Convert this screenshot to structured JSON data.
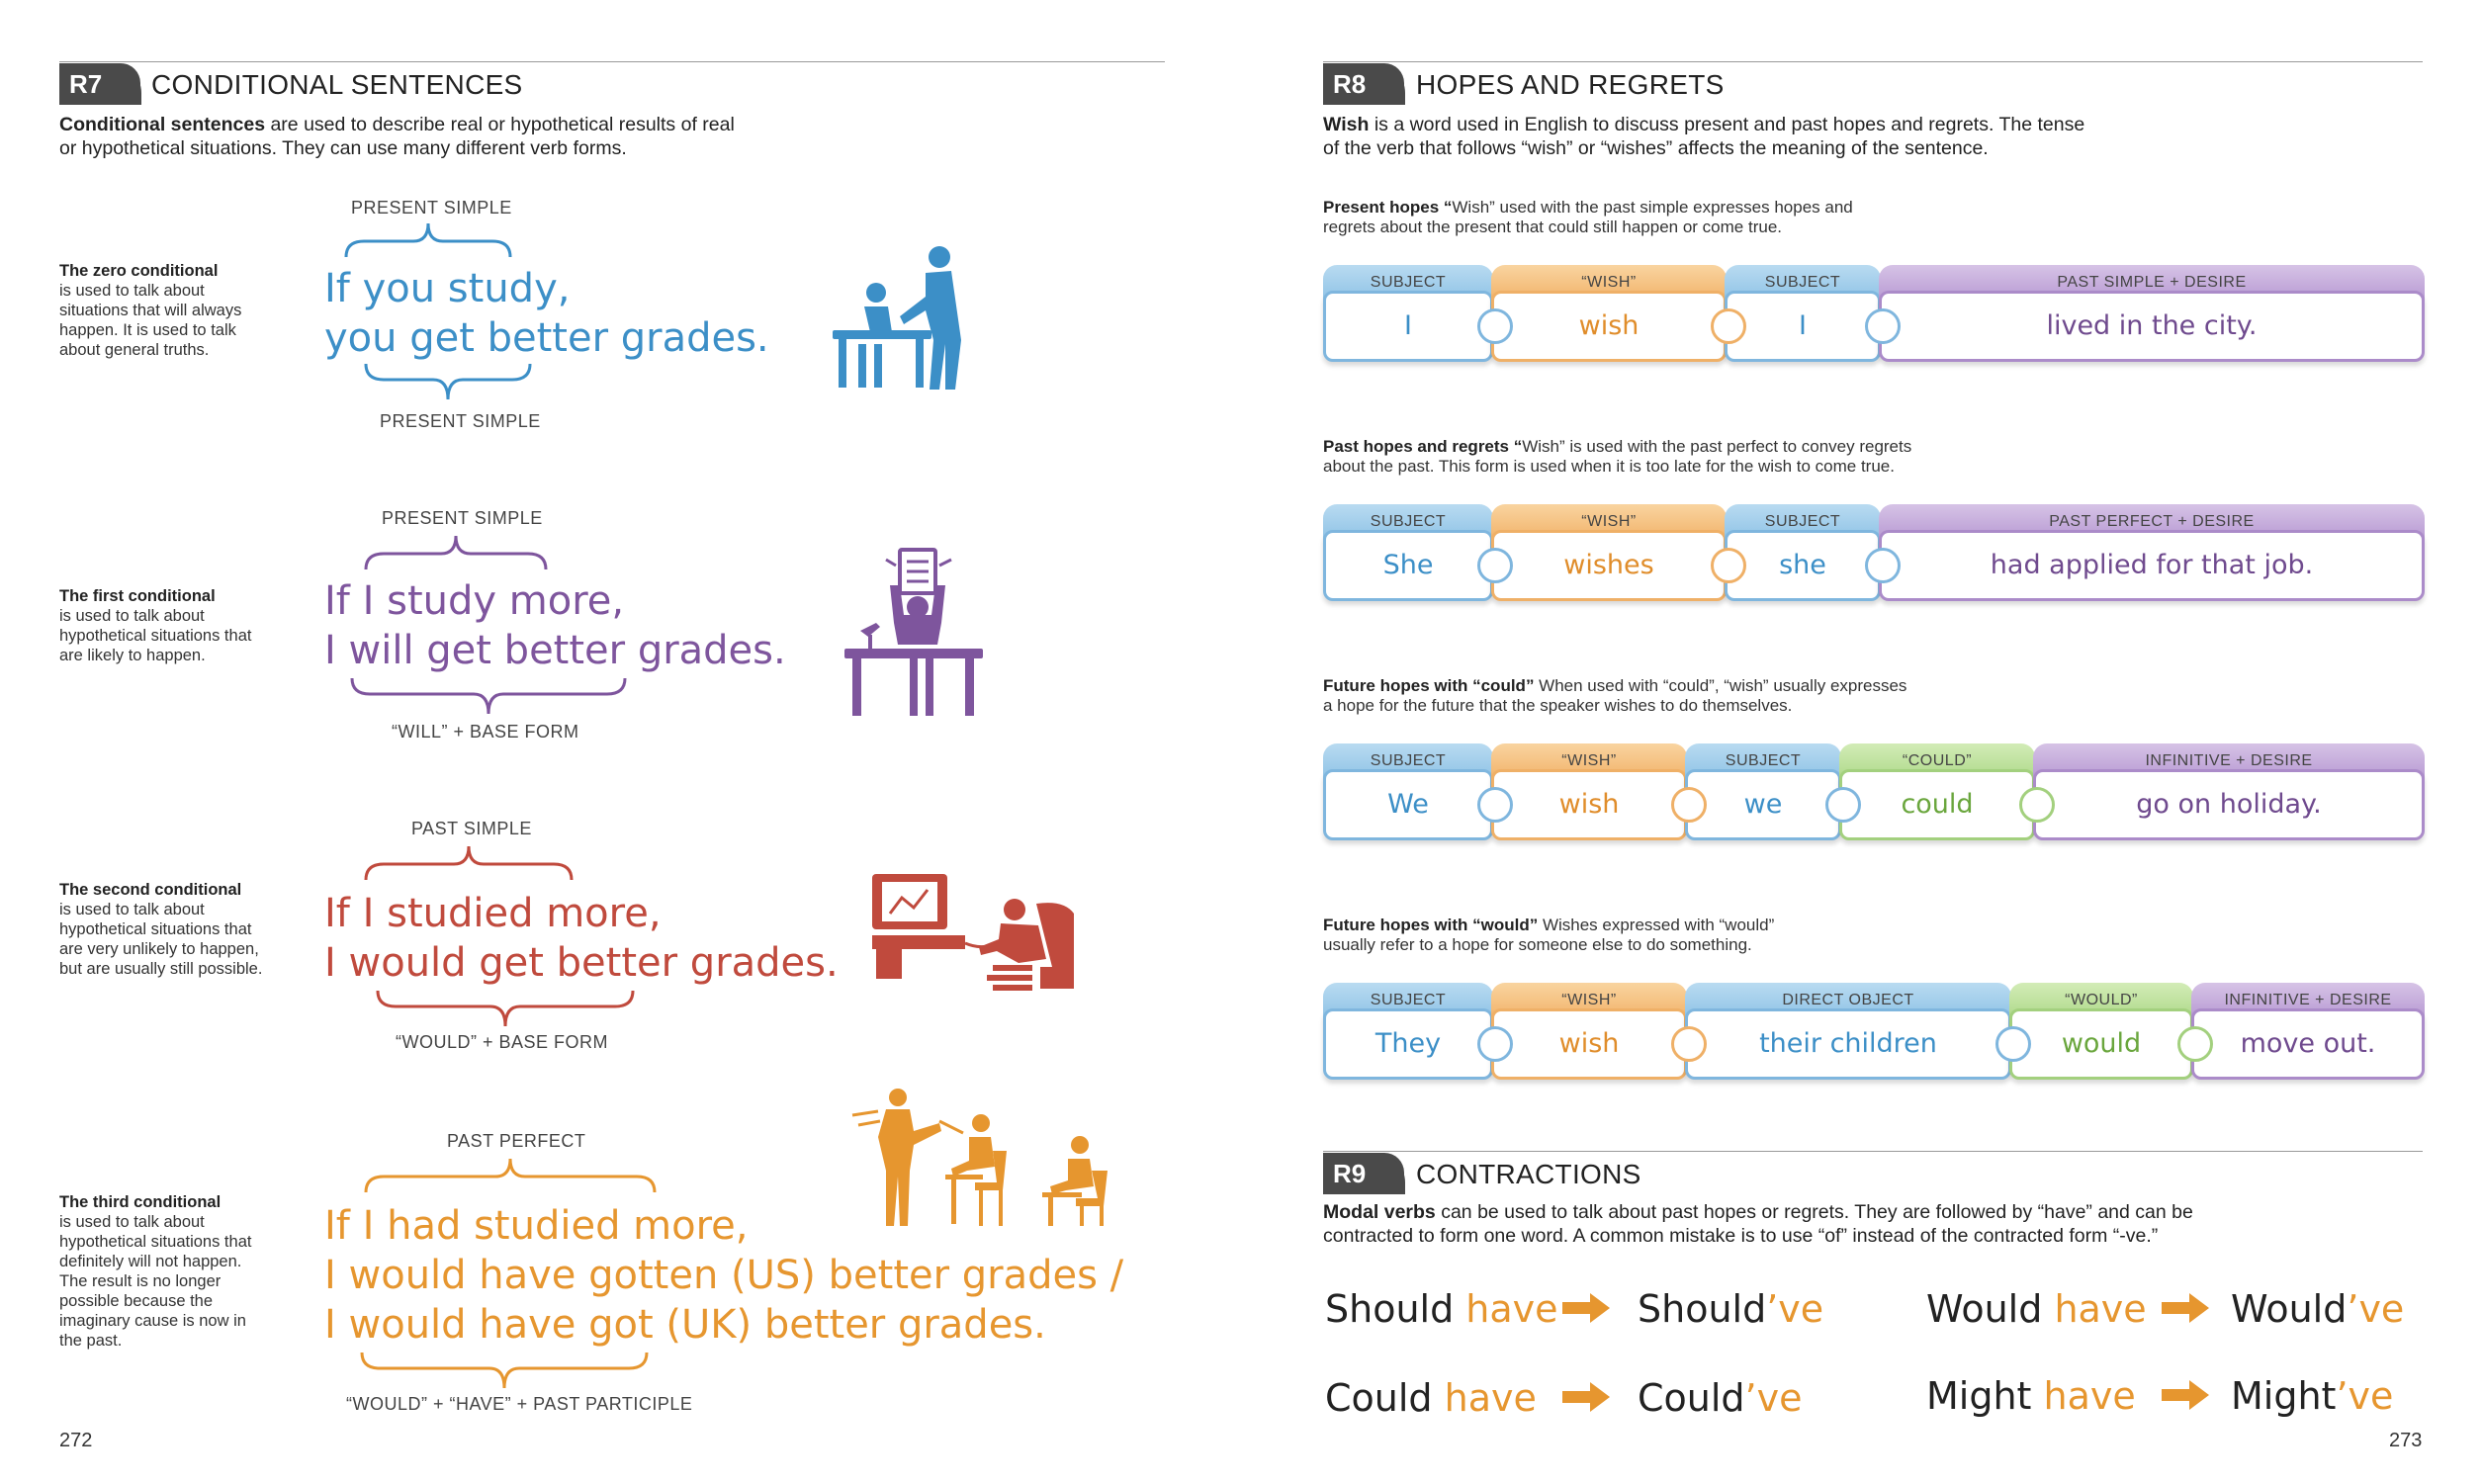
{
  "left": {
    "section_code": "R7",
    "section_title": "CONDITIONAL SENTENCES",
    "intro_bold": "Conditional sentences",
    "intro_rest_line1": " are used to describe real or hypothetical results of real",
    "intro_line2": "or hypothetical situations. They can use many different verb forms.",
    "conditionals": [
      {
        "heading": "The zero conditional",
        "note": "is used to talk about situations that will always happen. It is used to talk about general truths.",
        "top_label": "PRESENT SIMPLE",
        "line1": "If you study,",
        "line2": "you get better grades.",
        "bottom_label": "PRESENT SIMPLE"
      },
      {
        "heading": "The first conditional",
        "note": "is used to talk about hypothetical situations that are likely to happen.",
        "top_label": "PRESENT SIMPLE",
        "line1": "If I study more,",
        "line2": "I will get better grades.",
        "bottom_label": "“WILL” + BASE FORM"
      },
      {
        "heading": "The second conditional",
        "note": "is used to talk about hypothetical situations that are very unlikely to happen, but are usually still possible.",
        "top_label": "PAST SIMPLE",
        "line1": "If I studied more,",
        "line2": "I would get better grades.",
        "bottom_label": "“WOULD” + BASE FORM"
      },
      {
        "heading": "The third conditional",
        "note": "is used to talk about hypothetical situations that definitely will not happen. The result is no longer possible because the imaginary cause is now in the past.",
        "top_label": "PAST PERFECT",
        "line1": "If I had studied more,",
        "line2": "I would have gotten (US) better grades /",
        "line3": "I would have got (UK) better grades.",
        "bottom_label": "“WOULD” + “HAVE” + PAST PARTICIPLE"
      }
    ],
    "page_number": "272"
  },
  "right": {
    "section_code": "R8",
    "section_title": "HOPES AND REGRETS",
    "intro_bold": "Wish",
    "intro_rest_line1": " is a word used in English to discuss present and past hopes and regrets. The tense",
    "intro_line2": "of the verb that follows “wish” or “wishes” affects the meaning of the sentence.",
    "rows": [
      {
        "head_bold": "Present hopes “",
        "head_rest1": "Wish” used with the past simple expresses hopes and",
        "head_line2": "regrets about the present that could still happen or come true.",
        "pieces": [
          {
            "label": "SUBJECT",
            "word": "I"
          },
          {
            "label": "“WISH”",
            "word": "wish"
          },
          {
            "label": "SUBJECT",
            "word": "I"
          },
          {
            "label": "PAST SIMPLE + DESIRE",
            "word": "lived in the city."
          }
        ]
      },
      {
        "head_bold": "Past hopes and regrets “",
        "head_rest1": "Wish” is used with the past perfect to convey regrets",
        "head_line2": "about the past. This form is used when it is too late for the wish to come true.",
        "pieces": [
          {
            "label": "SUBJECT",
            "word": "She"
          },
          {
            "label": "“WISH”",
            "word": "wishes"
          },
          {
            "label": "SUBJECT",
            "word": "she"
          },
          {
            "label": "PAST PERFECT + DESIRE",
            "word": "had applied for that job."
          }
        ]
      },
      {
        "head_bold": "Future hopes with “could”",
        "head_rest1": " When used with “could”, “wish” usually expresses",
        "head_line2": "a hope for the future that the speaker wishes to do themselves.",
        "pieces": [
          {
            "label": "SUBJECT",
            "word": "We"
          },
          {
            "label": "“WISH”",
            "word": "wish"
          },
          {
            "label": "SUBJECT",
            "word": "we"
          },
          {
            "label": "“COULD”",
            "word": "could"
          },
          {
            "label": "INFINITIVE + DESIRE",
            "word": "go on holiday."
          }
        ]
      },
      {
        "head_bold": "Future hopes with “would”",
        "head_rest1": " Wishes expressed with “would”",
        "head_line2": "usually refer to a hope for someone else to do something.",
        "pieces": [
          {
            "label": "SUBJECT",
            "word": "They"
          },
          {
            "label": "“WISH”",
            "word": "wish"
          },
          {
            "label": "DIRECT OBJECT",
            "word": "their children"
          },
          {
            "label": "“WOULD”",
            "word": "would"
          },
          {
            "label": "INFINITIVE + DESIRE",
            "word": "move out."
          }
        ]
      }
    ],
    "r9": {
      "section_code": "R9",
      "section_title": "CONTRACTIONS",
      "intro_bold": "Modal verbs",
      "intro_rest_line1": " can be used to talk about past hopes or regrets. They are followed by “have” and can be",
      "intro_line2": "contracted to form one word. A common mistake is to use “of” instead of the contracted form “-ve.”",
      "contractions": [
        {
          "modal": "Should",
          "have": " have",
          "short": "Should",
          "ve": "’ve"
        },
        {
          "modal": "Would",
          "have": " have",
          "short": "Would",
          "ve": "’ve"
        },
        {
          "modal": "Could",
          "have": " have",
          "short": "Could",
          "ve": "’ve"
        },
        {
          "modal": "Might",
          "have": " have",
          "short": "Might",
          "ve": "’ve"
        }
      ]
    },
    "page_number": "273"
  },
  "colors": {
    "blue": "#3c8fc7",
    "purple": "#7e559d",
    "red": "#c04a3d",
    "orange": "#e6962f",
    "green": "#6aa63d"
  }
}
